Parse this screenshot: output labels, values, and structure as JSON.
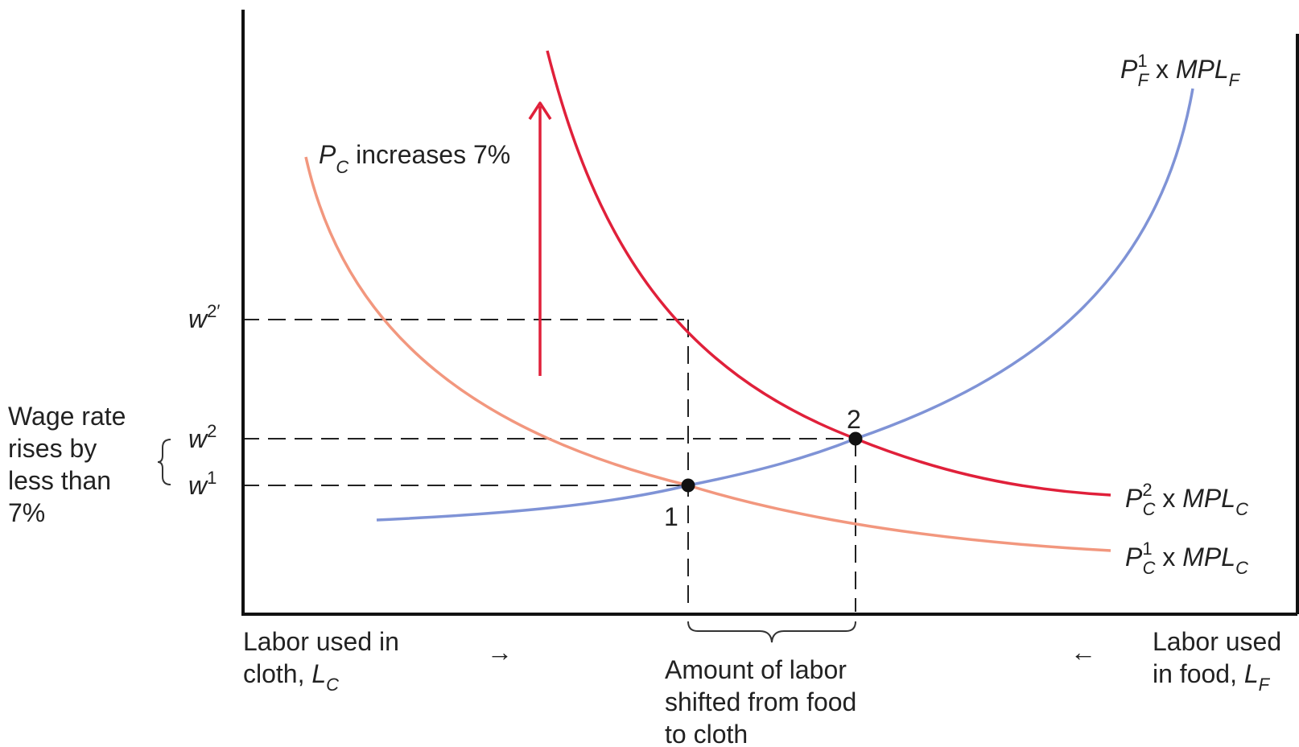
{
  "labels": {
    "annotation_pc": {
      "p": "P",
      "sub": "C",
      "rest": " increases 7%"
    },
    "curve_pf1": {
      "p": "P",
      "sup": "1",
      "sub": "F",
      "mid": " x ",
      "mpl": "MPL",
      "mplsub": "F"
    },
    "curve_pc2": {
      "p": "P",
      "sup": "2",
      "sub": "C",
      "mid": " x ",
      "mpl": "MPL",
      "mplsub": "C"
    },
    "curve_pc1": {
      "p": "P",
      "sup": "1",
      "sub": "C",
      "mid": " x ",
      "mpl": "MPL",
      "mplsub": "C"
    },
    "wage_w2prime": {
      "w": "w",
      "sup": "2′"
    },
    "wage_w2": {
      "w": "w",
      "sup": "2"
    },
    "wage_w1": {
      "w": "w",
      "sup": "1"
    },
    "wage_note": [
      "Wage rate",
      "rises by",
      "less than",
      "7%"
    ],
    "point_1": "1",
    "point_2": "2",
    "x_left": {
      "line1": "Labor used in",
      "line2": "cloth, ",
      "l": "L",
      "sub": "C"
    },
    "x_right": {
      "line1": "Labor used",
      "line2": "in food, ",
      "l": "L",
      "sub": "F"
    },
    "shift_note": [
      "Amount of labor",
      "shifted from food",
      "to cloth"
    ],
    "arrow_right": "→",
    "arrow_left": "←"
  },
  "colors": {
    "pf1_curve": "#7f93d6",
    "pc2_curve": "#e0203a",
    "pc1_curve": "#f2977e",
    "shift_arrow": "#e0203a",
    "ink": "#222222"
  }
}
